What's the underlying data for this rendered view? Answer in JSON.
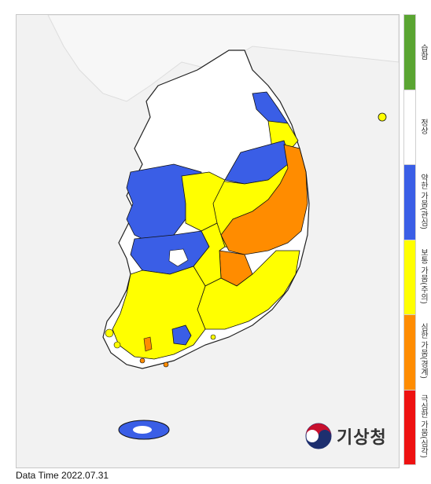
{
  "map": {
    "data_time": "Data Time 2022.07.31",
    "agency_logo_text": "기상청",
    "sea_color": "#f2f2f2",
    "north_korea_color": "#f4f4f4",
    "border_color": "#111111"
  },
  "legend": {
    "items": [
      {
        "key": "wet",
        "label": "습함",
        "color": "#5aa532"
      },
      {
        "key": "normal",
        "label": "정상",
        "color": "#ffffff"
      },
      {
        "key": "weak_drought",
        "label": "약한 가뭄(관심)",
        "color": "#3a5ee6"
      },
      {
        "key": "moderate_drought",
        "label": "보통 가뭄(주의)",
        "color": "#ffff00"
      },
      {
        "key": "severe_drought",
        "label": "심한 가뭄(경계)",
        "color": "#ff8c00"
      },
      {
        "key": "extreme_drought",
        "label": "극심한 가뭄(심각)",
        "color": "#ee1111"
      }
    ]
  },
  "regions": [
    {
      "name": "seoul-gyeonggi-west",
      "status": "normal"
    },
    {
      "name": "gangwon-north",
      "status": "normal"
    },
    {
      "name": "gangwon-east-coast",
      "status": "weak_drought"
    },
    {
      "name": "gangwon-southeast",
      "status": "moderate_drought"
    },
    {
      "name": "gyeonggi-south",
      "status": "normal"
    },
    {
      "name": "chungnam-west",
      "status": "weak_drought"
    },
    {
      "name": "chungbuk-central",
      "status": "moderate_drought"
    },
    {
      "name": "chungbuk-north",
      "status": "weak_drought"
    },
    {
      "name": "gyeongbuk-north",
      "status": "moderate_drought"
    },
    {
      "name": "gyeongbuk-central",
      "status": "severe_drought"
    },
    {
      "name": "gyeongbuk-east",
      "status": "severe_drought"
    },
    {
      "name": "jeonbuk-west",
      "status": "weak_drought"
    },
    {
      "name": "jeonbuk-east",
      "status": "moderate_drought"
    },
    {
      "name": "gyeongnam",
      "status": "moderate_drought"
    },
    {
      "name": "daegu-southwest",
      "status": "severe_drought"
    },
    {
      "name": "jeonnam",
      "status": "moderate_drought"
    },
    {
      "name": "jeonnam-south-coast",
      "status": "weak_drought"
    },
    {
      "name": "jeju",
      "status": "weak_drought"
    }
  ]
}
